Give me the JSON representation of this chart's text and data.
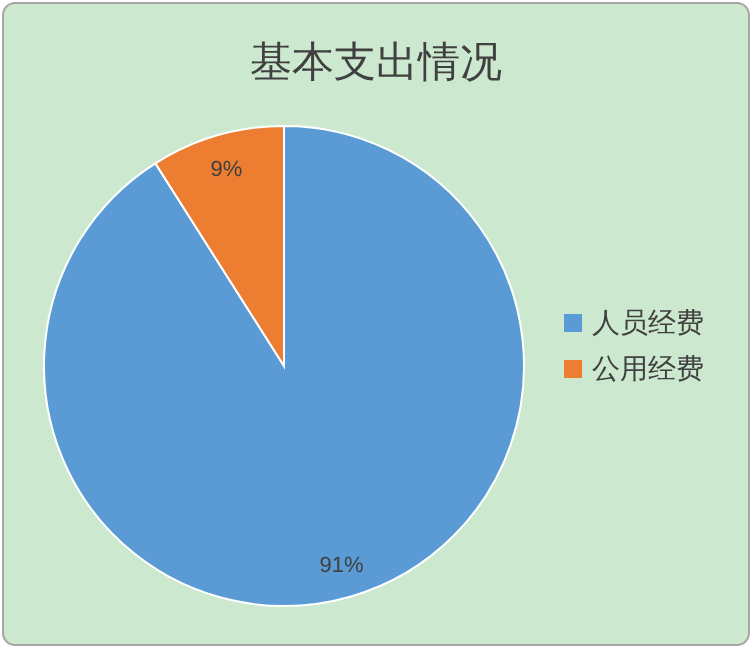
{
  "chart_data": {
    "type": "pie",
    "title": "基本支出情况",
    "categories": [
      "人员经费",
      "公用经费"
    ],
    "values": [
      91,
      9
    ],
    "colors": [
      "#5b9bd5",
      "#ed7d31"
    ],
    "value_labels": [
      "91%",
      "9%"
    ],
    "legend": "right"
  }
}
